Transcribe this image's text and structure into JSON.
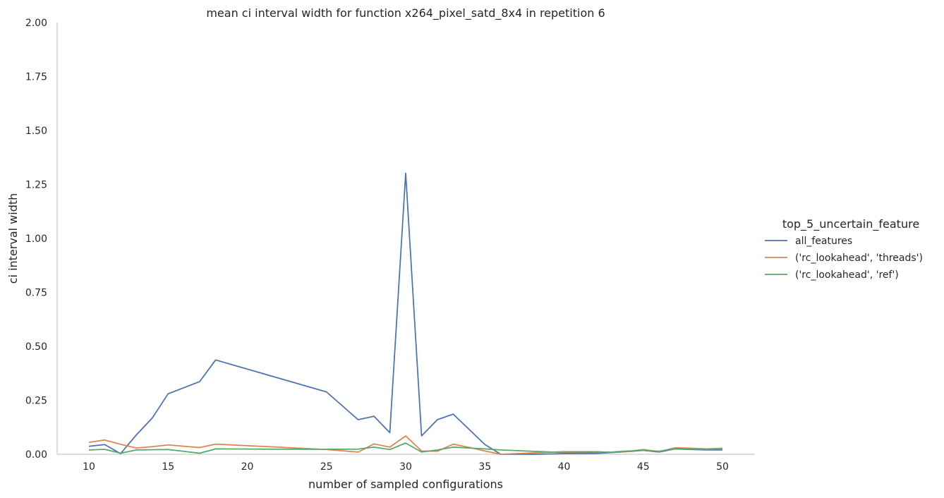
{
  "chart_data": {
    "type": "line",
    "title": "mean ci interval width for function x264_pixel_satd_8x4 in repetition 6",
    "xlabel": "number of sampled configurations",
    "ylabel": "ci interval width",
    "xlim": [
      8,
      52
    ],
    "ylim": [
      0,
      2.0
    ],
    "xticks": [
      10,
      15,
      20,
      25,
      30,
      35,
      40,
      45,
      50
    ],
    "yticks": [
      0.0,
      0.25,
      0.5,
      0.75,
      1.0,
      1.25,
      1.5,
      1.75,
      2.0
    ],
    "ytick_labels": [
      "0.00",
      "0.25",
      "0.50",
      "0.75",
      "1.00",
      "1.25",
      "1.50",
      "1.75",
      "2.00"
    ],
    "grid": false,
    "legend_title": "top_5_uncertain_feature",
    "legend_position": "right",
    "series": [
      {
        "name": "all_features",
        "color": "#4c72b0",
        "points": [
          [
            10,
            0.037
          ],
          [
            11,
            0.045
          ],
          [
            12,
            0.003
          ],
          [
            13,
            0.09
          ],
          [
            14,
            0.168
          ],
          [
            15,
            0.28
          ],
          [
            17,
            0.337
          ],
          [
            18,
            0.437
          ],
          [
            25,
            0.289
          ],
          [
            27,
            0.16
          ],
          [
            28,
            0.176
          ],
          [
            29,
            0.1
          ],
          [
            30,
            1.302
          ],
          [
            31,
            0.085
          ],
          [
            32,
            0.16
          ],
          [
            33,
            0.186
          ],
          [
            35,
            0.045
          ],
          [
            36,
            0.0
          ],
          [
            38,
            0.0
          ],
          [
            40,
            0.003
          ],
          [
            42,
            0.004
          ],
          [
            43,
            0.008
          ],
          [
            44,
            0.012
          ],
          [
            45,
            0.018
          ],
          [
            46,
            0.01
          ],
          [
            47,
            0.025
          ],
          [
            48,
            0.022
          ],
          [
            49,
            0.02
          ],
          [
            50,
            0.02
          ]
        ]
      },
      {
        "name": "('rc_lookahead', 'threads')",
        "color": "#dd8452",
        "points": [
          [
            10,
            0.055
          ],
          [
            11,
            0.066
          ],
          [
            12,
            0.046
          ],
          [
            13,
            0.029
          ],
          [
            14,
            0.035
          ],
          [
            15,
            0.043
          ],
          [
            17,
            0.031
          ],
          [
            18,
            0.047
          ],
          [
            25,
            0.022
          ],
          [
            27,
            0.01
          ],
          [
            28,
            0.048
          ],
          [
            29,
            0.033
          ],
          [
            30,
            0.085
          ],
          [
            31,
            0.015
          ],
          [
            32,
            0.014
          ],
          [
            33,
            0.047
          ],
          [
            34,
            0.032
          ],
          [
            35,
            0.015
          ],
          [
            36,
            0.0
          ],
          [
            40,
            0.012
          ],
          [
            42,
            0.012
          ],
          [
            43,
            0.009
          ],
          [
            44,
            0.013
          ],
          [
            45,
            0.022
          ],
          [
            46,
            0.012
          ],
          [
            47,
            0.03
          ],
          [
            48,
            0.028
          ],
          [
            49,
            0.025
          ],
          [
            50,
            0.028
          ]
        ]
      },
      {
        "name": "('rc_lookahead', 'ref')",
        "color": "#55a868",
        "points": [
          [
            10,
            0.02
          ],
          [
            11,
            0.023
          ],
          [
            12,
            0.005
          ],
          [
            13,
            0.02
          ],
          [
            15,
            0.022
          ],
          [
            17,
            0.005
          ],
          [
            18,
            0.025
          ],
          [
            25,
            0.023
          ],
          [
            27,
            0.024
          ],
          [
            28,
            0.033
          ],
          [
            29,
            0.022
          ],
          [
            30,
            0.052
          ],
          [
            31,
            0.01
          ],
          [
            32,
            0.02
          ],
          [
            33,
            0.033
          ],
          [
            35,
            0.025
          ],
          [
            36,
            0.02
          ],
          [
            40,
            0.008
          ],
          [
            43,
            0.01
          ],
          [
            44,
            0.015
          ],
          [
            45,
            0.018
          ],
          [
            46,
            0.014
          ],
          [
            47,
            0.026
          ],
          [
            48,
            0.024
          ],
          [
            49,
            0.022
          ],
          [
            50,
            0.024
          ]
        ]
      }
    ]
  }
}
